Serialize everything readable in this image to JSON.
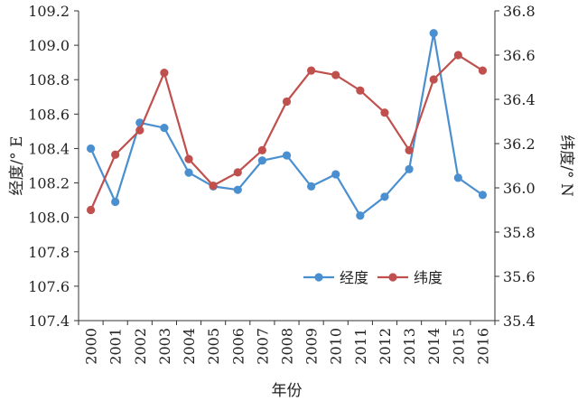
{
  "chart_data": {
    "type": "line",
    "xlabel": "年份",
    "x": [
      "2000",
      "2001",
      "2002",
      "2003",
      "2004",
      "2005",
      "2006",
      "2007",
      "2008",
      "2009",
      "2010",
      "2011",
      "2012",
      "2013",
      "2014",
      "2015",
      "2016"
    ],
    "y_left": {
      "label": "经度/° E",
      "range": [
        107.4,
        109.2
      ],
      "ticks": [
        "107.4",
        "107.6",
        "107.8",
        "108.0",
        "108.2",
        "108.4",
        "108.6",
        "108.8",
        "109.0",
        "109.2"
      ]
    },
    "y_right": {
      "label": "纬度/° N",
      "range": [
        35.4,
        36.8
      ],
      "ticks": [
        "35.4",
        "35.6",
        "35.8",
        "36.0",
        "36.2",
        "36.4",
        "36.6",
        "36.8"
      ]
    },
    "series": [
      {
        "name": "经度",
        "axis": "left",
        "color": "#4a8fd0",
        "values": [
          108.4,
          108.09,
          108.55,
          108.52,
          108.26,
          108.18,
          108.16,
          108.33,
          108.36,
          108.18,
          108.25,
          108.01,
          108.12,
          108.28,
          109.07,
          108.23,
          108.13
        ]
      },
      {
        "name": "纬度",
        "axis": "right",
        "color": "#c0504d",
        "values": [
          35.9,
          36.15,
          36.26,
          36.52,
          36.13,
          36.01,
          36.07,
          36.17,
          36.39,
          36.53,
          36.51,
          36.44,
          36.34,
          36.17,
          36.49,
          36.6,
          36.53
        ]
      }
    ],
    "legend": {
      "placement": "bottom-right"
    },
    "grid": false
  }
}
